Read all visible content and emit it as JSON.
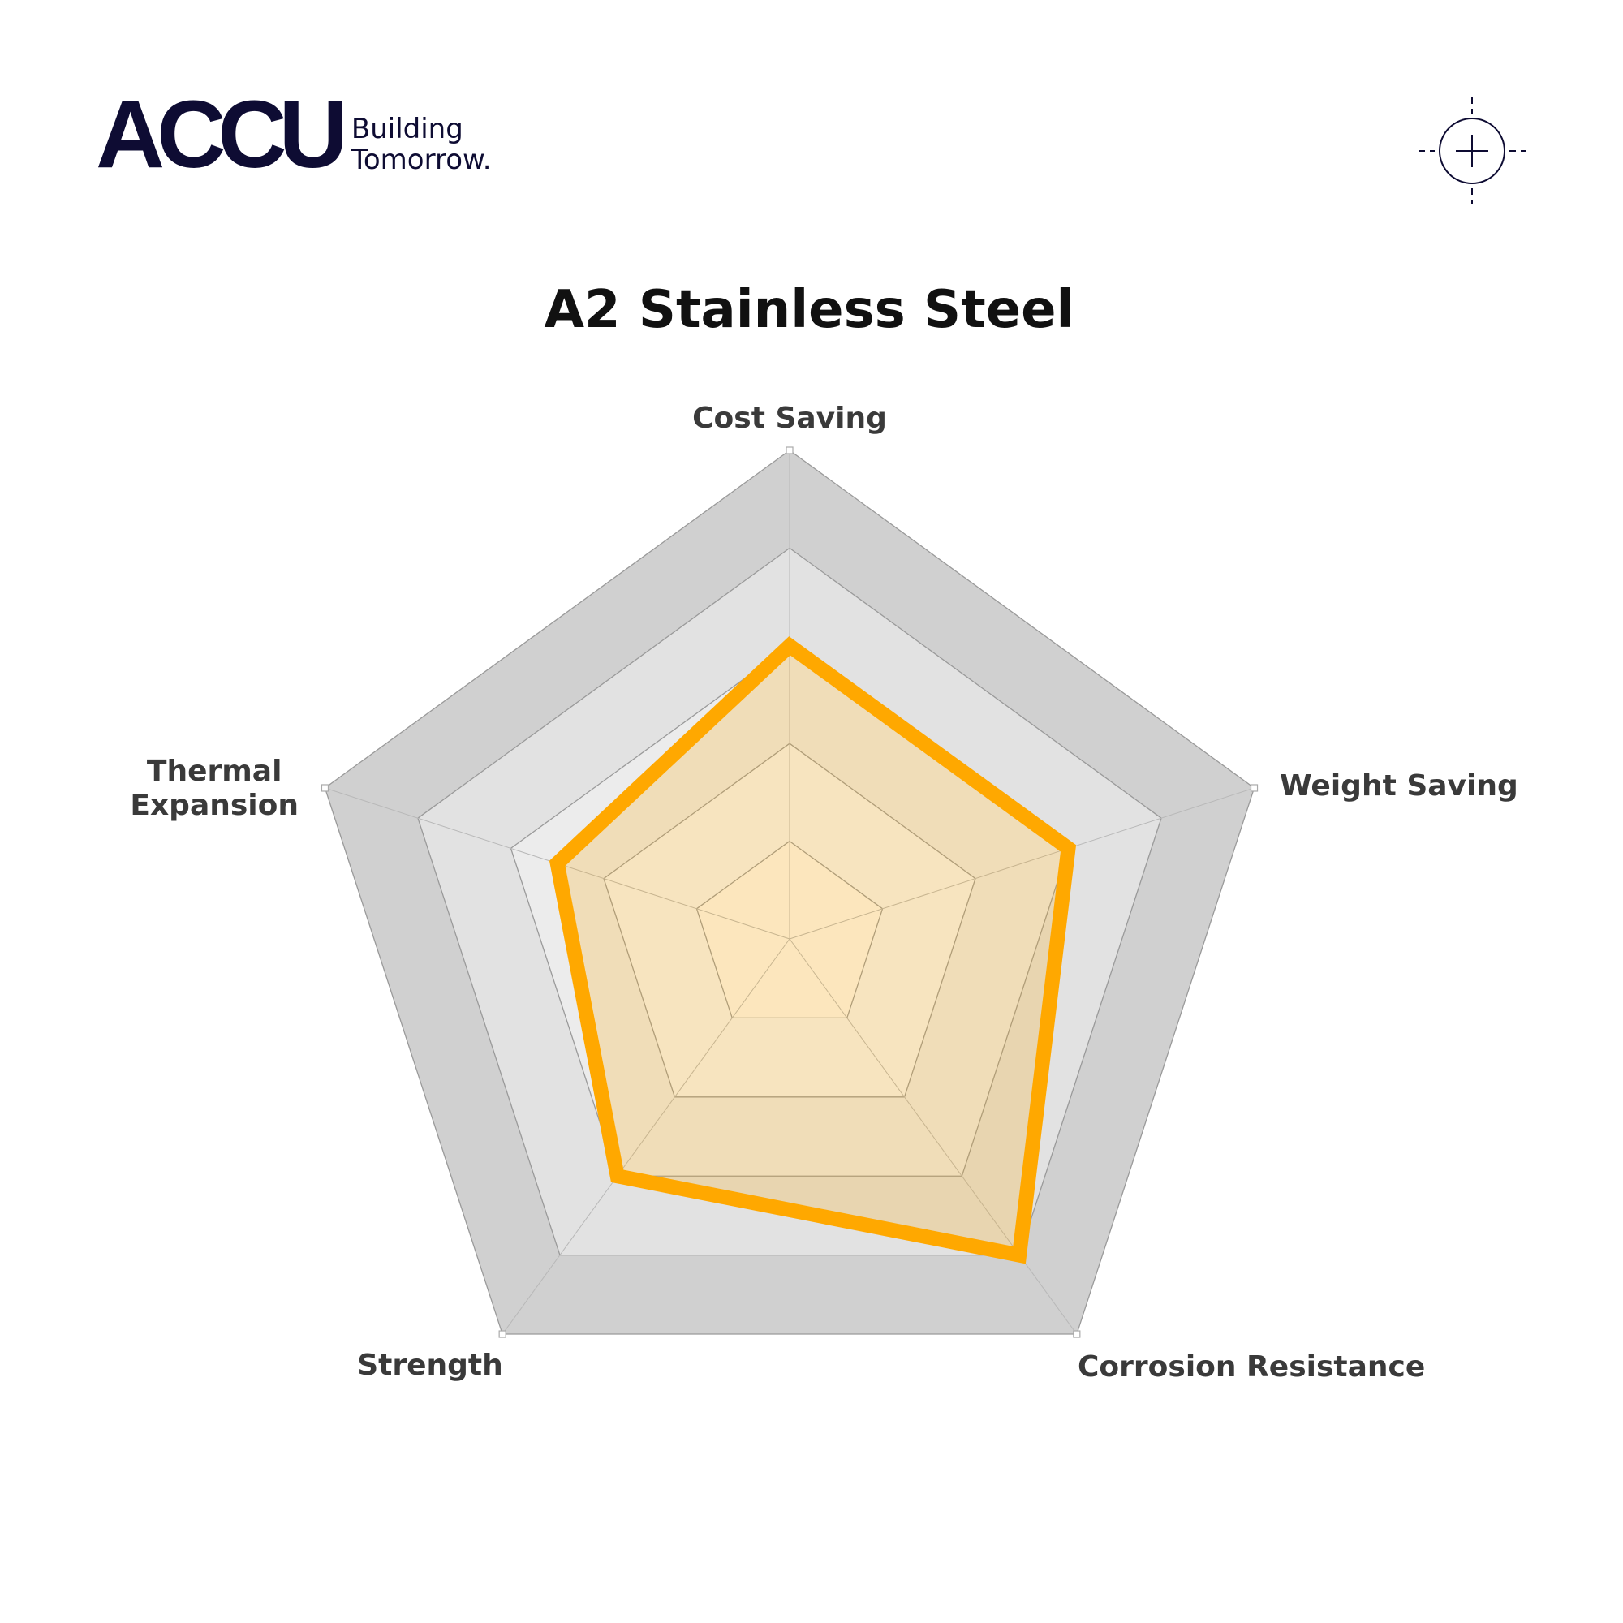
{
  "logo": {
    "mark": "ACCU",
    "tagline_1": "Building",
    "tagline_2": "Tomorrow."
  },
  "header": {
    "icon": "crosshair-icon"
  },
  "chart_data": {
    "type": "radar",
    "title": "A2 Stainless Steel",
    "axes": [
      "Cost Saving",
      "Weight Saving",
      "Corrosion Resistance",
      "Strength",
      "Thermal Expansion"
    ],
    "axis_label_lines": {
      "Thermal Expansion": [
        "Thermal",
        "Expansion"
      ]
    },
    "range": [
      0,
      5
    ],
    "levels": 5,
    "series": [
      {
        "values": [
          3,
          3,
          4,
          3,
          2.5
        ],
        "color": "#FFA800"
      }
    ],
    "grid_colors": [
      "#fbf8f2",
      "#f5f5f5",
      "#ececec",
      "#e2e2e2",
      "#d0d0d0"
    ]
  }
}
